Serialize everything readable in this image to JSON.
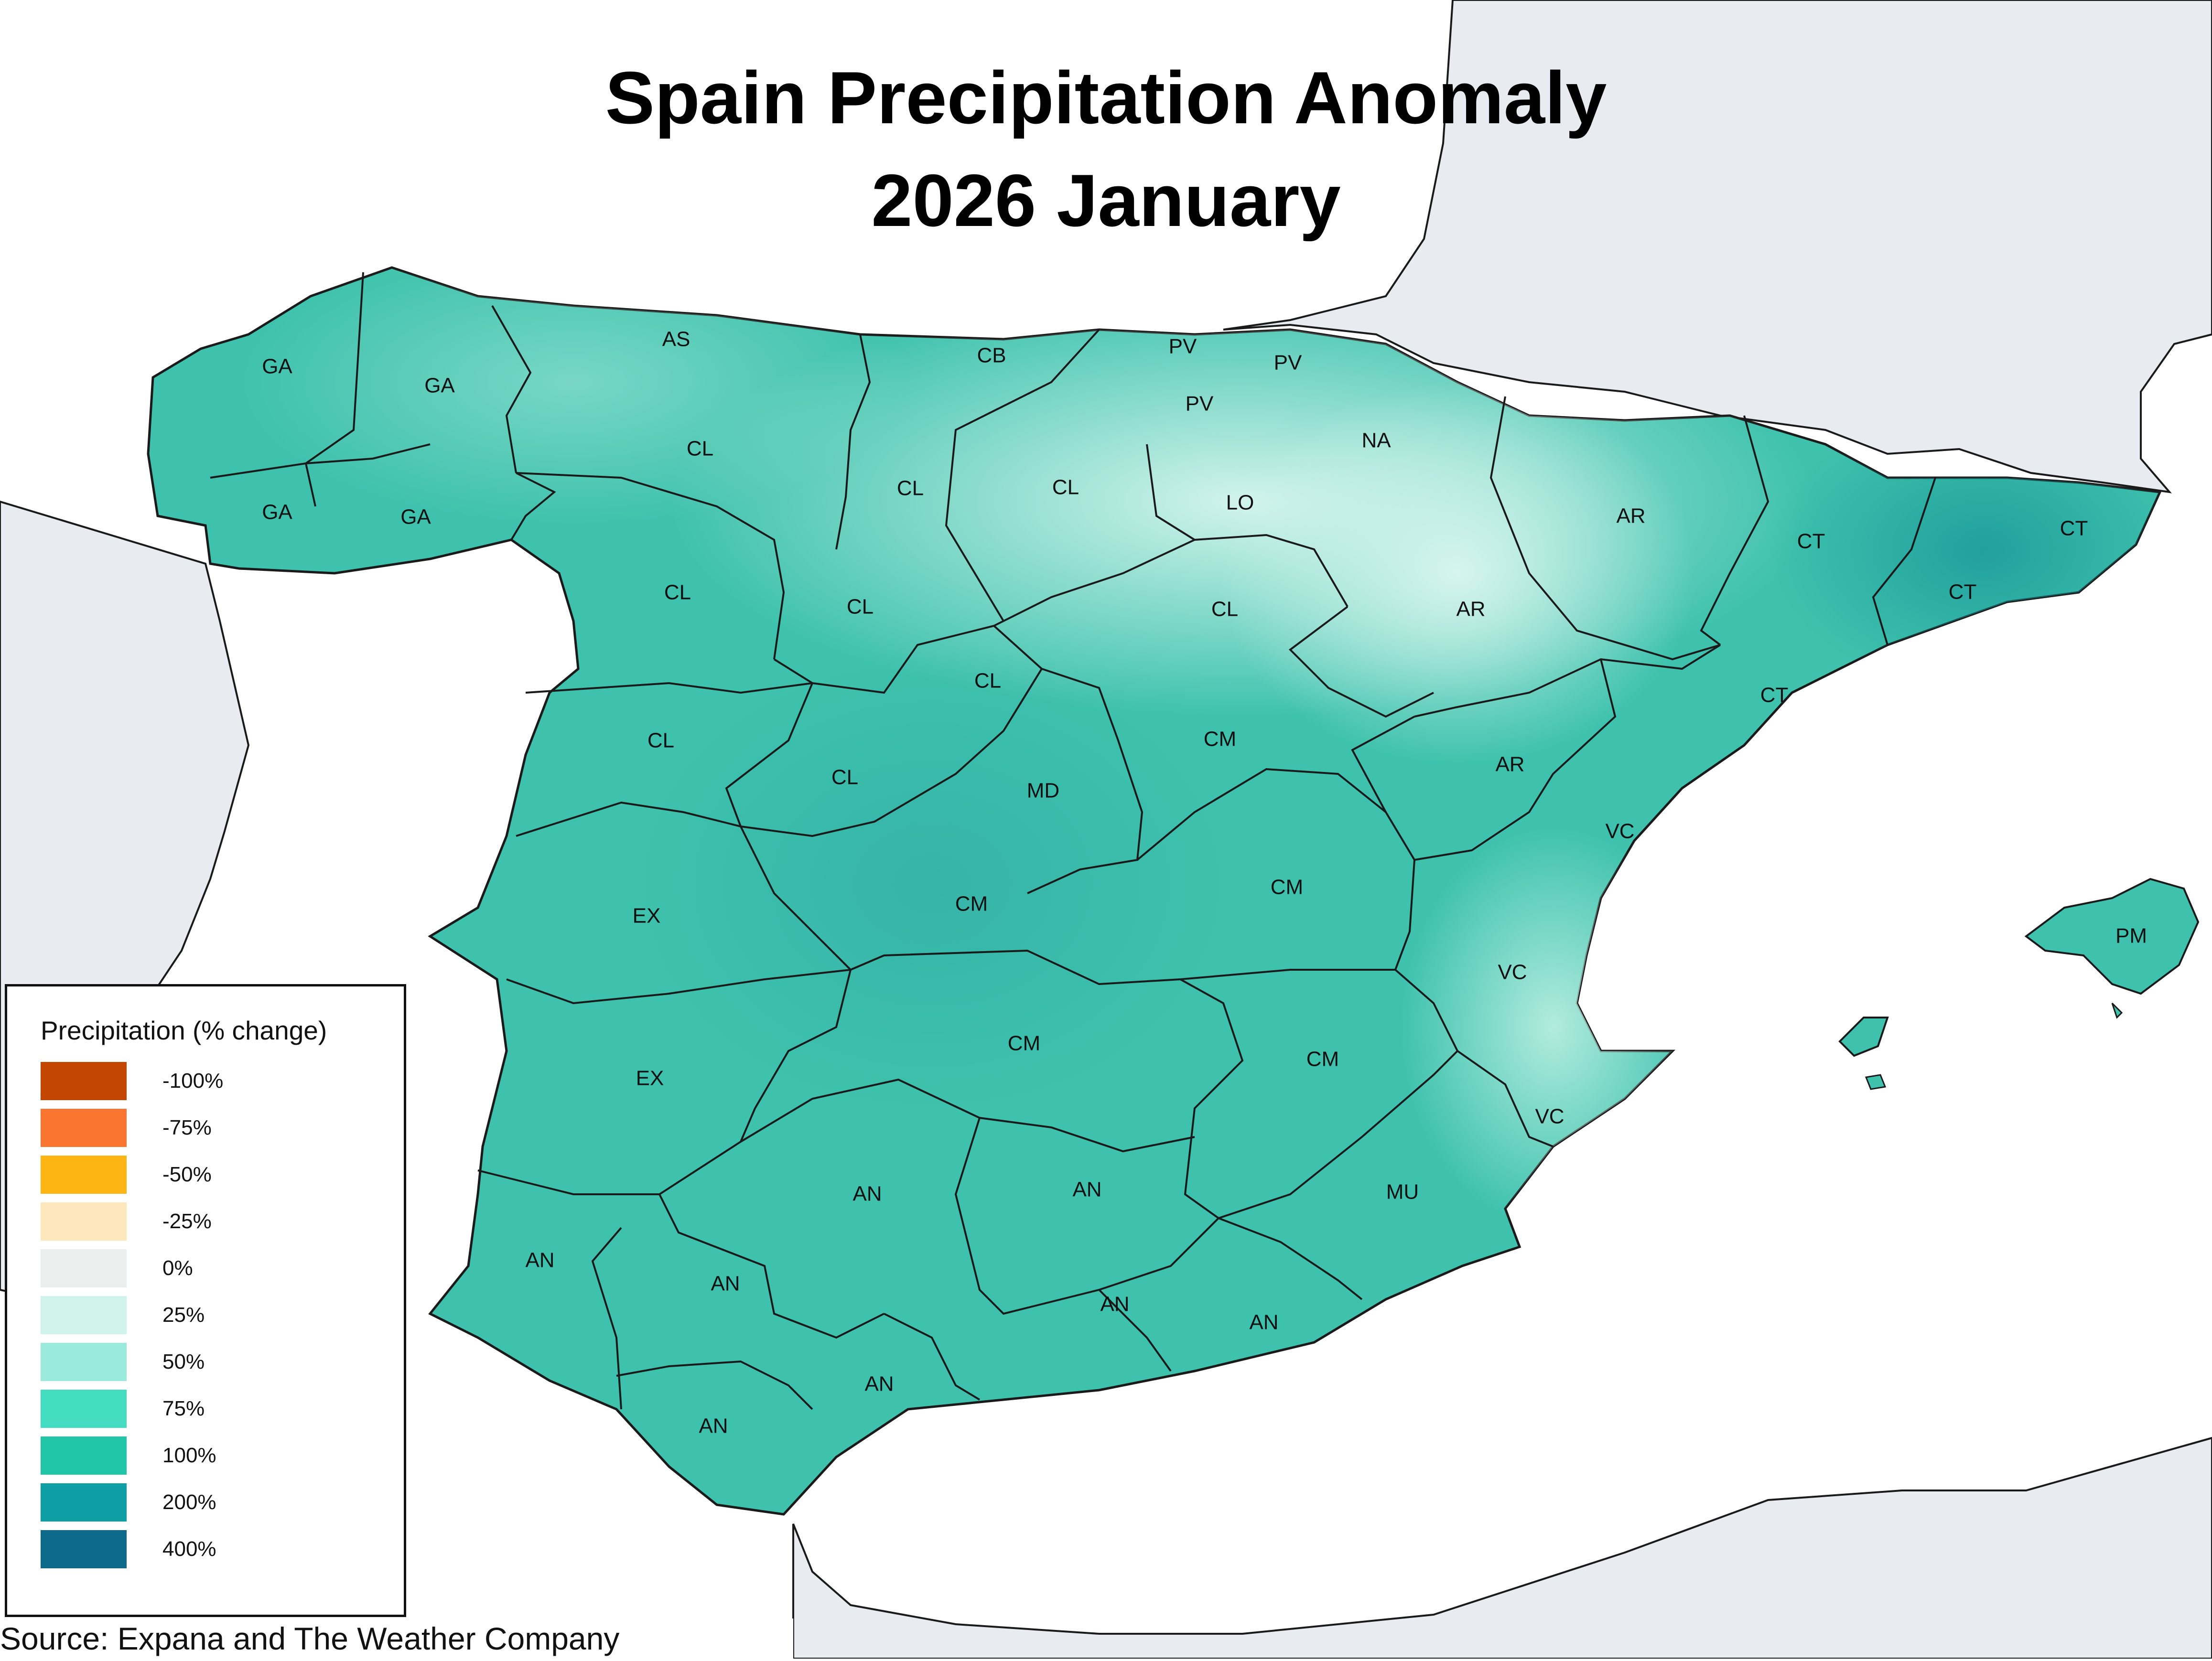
{
  "map": {
    "title_line_1": "Spain Precipitation Anomaly",
    "title_line_2": "2026 January",
    "source": "Source: Expana and The Weather Company",
    "colors": {
      "sea": "#ffffff",
      "land_outside": "#e8ebf0",
      "border": "#1a1a1a",
      "anomaly_light": "#c8f2e8",
      "anomaly_mid": "#55d6bf",
      "anomaly_high": "#3ec2ad",
      "anomaly_deep": "#2aa5a5"
    },
    "regions": [
      {
        "code": "GA",
        "anomaly_class": "75%"
      },
      {
        "code": "GA",
        "anomaly_class": "75%"
      },
      {
        "code": "GA",
        "anomaly_class": "75%"
      },
      {
        "code": "GA",
        "anomaly_class": "75%"
      },
      {
        "code": "AS",
        "anomaly_class": "50%"
      },
      {
        "code": "CB",
        "anomaly_class": "25%"
      },
      {
        "code": "PV",
        "anomaly_class": "25%"
      },
      {
        "code": "PV",
        "anomaly_class": "25%"
      },
      {
        "code": "PV",
        "anomaly_class": "25%"
      },
      {
        "code": "NA",
        "anomaly_class": "25%"
      },
      {
        "code": "LO",
        "anomaly_class": "25%"
      },
      {
        "code": "CL",
        "anomaly_class": "75%"
      },
      {
        "code": "CL",
        "anomaly_class": "50%"
      },
      {
        "code": "CL",
        "anomaly_class": "25%"
      },
      {
        "code": "CL",
        "anomaly_class": "100%"
      },
      {
        "code": "CL",
        "anomaly_class": "75%"
      },
      {
        "code": "CL",
        "anomaly_class": "50%"
      },
      {
        "code": "CL",
        "anomaly_class": "75%"
      },
      {
        "code": "CL",
        "anomaly_class": "100%"
      },
      {
        "code": "CL",
        "anomaly_class": "100%"
      },
      {
        "code": "AR",
        "anomaly_class": "50%"
      },
      {
        "code": "AR",
        "anomaly_class": "25%"
      },
      {
        "code": "AR",
        "anomaly_class": "75%"
      },
      {
        "code": "CT",
        "anomaly_class": "100%"
      },
      {
        "code": "CT",
        "anomaly_class": "200%"
      },
      {
        "code": "CT",
        "anomaly_class": "200%"
      },
      {
        "code": "CT",
        "anomaly_class": "75%"
      },
      {
        "code": "CM",
        "anomaly_class": "75%"
      },
      {
        "code": "MD",
        "anomaly_class": "100%"
      },
      {
        "code": "CM",
        "anomaly_class": "200%"
      },
      {
        "code": "CM",
        "anomaly_class": "75%"
      },
      {
        "code": "CM",
        "anomaly_class": "100%"
      },
      {
        "code": "CM",
        "anomaly_class": "75%"
      },
      {
        "code": "VC",
        "anomaly_class": "50%"
      },
      {
        "code": "VC",
        "anomaly_class": "50%"
      },
      {
        "code": "VC",
        "anomaly_class": "25%"
      },
      {
        "code": "EX",
        "anomaly_class": "100%"
      },
      {
        "code": "EX",
        "anomaly_class": "100%"
      },
      {
        "code": "MU",
        "anomaly_class": "75%"
      },
      {
        "code": "AN",
        "anomaly_class": "100%"
      },
      {
        "code": "AN",
        "anomaly_class": "100%"
      },
      {
        "code": "AN",
        "anomaly_class": "100%"
      },
      {
        "code": "AN",
        "anomaly_class": "100%"
      },
      {
        "code": "AN",
        "anomaly_class": "100%"
      },
      {
        "code": "AN",
        "anomaly_class": "100%"
      },
      {
        "code": "AN",
        "anomaly_class": "100%"
      },
      {
        "code": "AN",
        "anomaly_class": "100%"
      },
      {
        "code": "PM",
        "anomaly_class": "100%"
      }
    ]
  },
  "legend": {
    "title": "Precipitation (% change)",
    "items": [
      {
        "label": "-100%",
        "color": "#c44601"
      },
      {
        "label": "-75%",
        "color": "#fa7530"
      },
      {
        "label": "-50%",
        "color": "#fdb515"
      },
      {
        "label": "-25%",
        "color": "#fde7bd"
      },
      {
        "label": "0%",
        "color": "#eaeeec"
      },
      {
        "label": "25%",
        "color": "#cff3ea"
      },
      {
        "label": "50%",
        "color": "#9aebdc"
      },
      {
        "label": "75%",
        "color": "#44dcc0"
      },
      {
        "label": "100%",
        "color": "#21c5a7"
      },
      {
        "label": "200%",
        "color": "#0d9fa4"
      },
      {
        "label": "400%",
        "color": "#0e6a8a"
      }
    ]
  }
}
